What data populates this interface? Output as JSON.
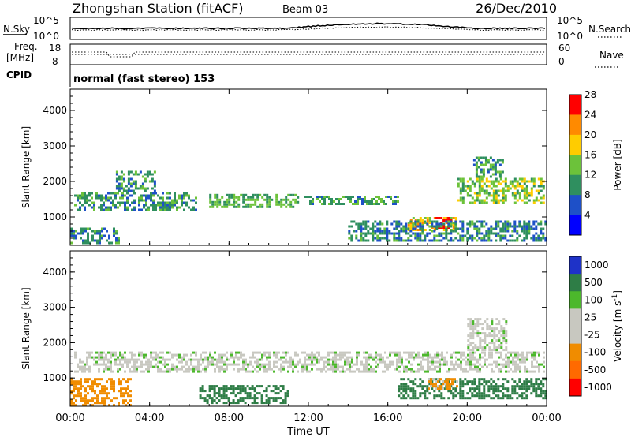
{
  "header": {
    "station": "Zhongshan Station (fitACF)",
    "beam": "Beam 03",
    "date": "26/Dec/2010"
  },
  "panels": {
    "nsky_label": "N.Sky",
    "nsearch_label": "N.Search",
    "nsky_ticks": [
      "10^5",
      "10^0"
    ],
    "nsearch_ticks": [
      "10^5",
      "10^0"
    ],
    "freq_label_line1": "Freq.",
    "freq_label_line2": "[MHz]",
    "freq_ticks": [
      "18",
      "8"
    ],
    "nave_label": "Nave",
    "nave_ticks": [
      "60",
      "0"
    ],
    "cpid_label": "CPID",
    "cpid_text": "normal (fast stereo) 153"
  },
  "chart_data": [
    {
      "type": "heatmap",
      "title": "",
      "xlabel": "",
      "ylabel": "Slant Range [km]",
      "x_ticks": [
        "00:00",
        "04:00",
        "08:00",
        "12:00",
        "16:00",
        "20:00",
        "00:00"
      ],
      "x_range_hours": [
        0,
        24
      ],
      "y_ticks": [
        1000,
        2000,
        3000,
        4000
      ],
      "ylim": [
        200,
        4600
      ],
      "colorbar": {
        "label": "Power [dB]",
        "ticks": [
          "4",
          "8",
          "12",
          "16",
          "20",
          "24",
          "28"
        ],
        "colors": [
          "#0000ff",
          "#1e50c8",
          "#2f8f5f",
          "#6cc23a",
          "#ffcc00",
          "#ff8a00",
          "#ff0000"
        ]
      },
      "echo_regions": [
        {
          "t_start": 0.2,
          "t_end": 6.3,
          "range_min": 1200,
          "range_max": 1700,
          "value": 10
        },
        {
          "t_start": 7.0,
          "t_end": 11.5,
          "range_min": 1300,
          "range_max": 1650,
          "value": 12
        },
        {
          "t_start": 11.8,
          "t_end": 16.5,
          "range_min": 1350,
          "range_max": 1600,
          "value": 11
        },
        {
          "t_start": 2.3,
          "t_end": 4.3,
          "range_min": 1700,
          "range_max": 2300,
          "value": 10
        },
        {
          "t_start": 17.0,
          "t_end": 19.5,
          "range_min": 600,
          "range_max": 1000,
          "value": 18
        },
        {
          "t_start": 18.4,
          "t_end": 19.2,
          "range_min": 700,
          "range_max": 1000,
          "value": 28
        },
        {
          "t_start": 19.5,
          "t_end": 23.9,
          "range_min": 1400,
          "range_max": 2100,
          "value": 14
        },
        {
          "t_start": 20.3,
          "t_end": 21.8,
          "range_min": 2100,
          "range_max": 2700,
          "value": 10
        },
        {
          "t_start": 0.0,
          "t_end": 2.5,
          "range_min": 250,
          "range_max": 700,
          "value": 9
        },
        {
          "t_start": 14.0,
          "t_end": 23.9,
          "range_min": 300,
          "range_max": 900,
          "value": 9
        }
      ]
    },
    {
      "type": "heatmap",
      "title": "",
      "xlabel": "Time UT",
      "ylabel": "Slant Range [km]",
      "x_ticks": [
        "00:00",
        "04:00",
        "08:00",
        "12:00",
        "16:00",
        "20:00",
        "00:00"
      ],
      "x_range_hours": [
        0,
        24
      ],
      "y_ticks": [
        1000,
        2000,
        3000,
        4000
      ],
      "ylim": [
        200,
        4600
      ],
      "colorbar": {
        "label": "Velocity [m s^-1]",
        "unit_main": "Velocity [m s",
        "unit_exp": "-1",
        "unit_close": "]",
        "ticks": [
          "1000",
          "500",
          "100",
          "25",
          "-25",
          "-100",
          "-500",
          "-1000"
        ],
        "colors": [
          "#1e32c8",
          "#2e7d46",
          "#4cb82c",
          "#c8c8c0",
          "#c8c8c0",
          "#f08c00",
          "#ff6a00",
          "#ff0000"
        ]
      },
      "echo_regions": [
        {
          "t_start": 0.2,
          "t_end": 23.9,
          "range_min": 1200,
          "range_max": 1750,
          "value": 0
        },
        {
          "t_start": 20.0,
          "t_end": 22.0,
          "range_min": 1800,
          "range_max": 2700,
          "value": 0
        },
        {
          "t_start": 0.0,
          "t_end": 3.0,
          "range_min": 250,
          "range_max": 1000,
          "value": -300
        },
        {
          "t_start": 16.5,
          "t_end": 23.9,
          "range_min": 400,
          "range_max": 1000,
          "value": 150
        },
        {
          "t_start": 18.0,
          "t_end": 19.5,
          "range_min": 700,
          "range_max": 1000,
          "value": -120
        },
        {
          "t_start": 6.5,
          "t_end": 11.0,
          "range_min": 300,
          "range_max": 800,
          "value": 150
        }
      ]
    }
  ]
}
